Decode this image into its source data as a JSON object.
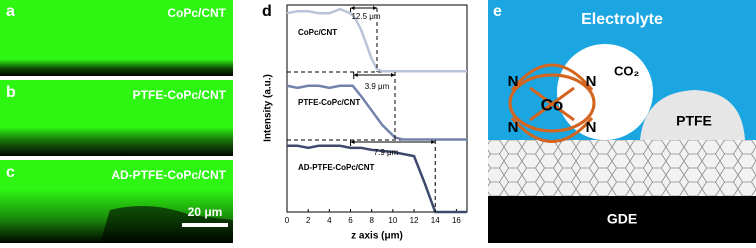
{
  "panels": {
    "a": {
      "letter": "a",
      "label": "CoPc/CNT"
    },
    "b": {
      "letter": "b",
      "label": "PTFE-CoPc/CNT"
    },
    "c": {
      "letter": "c",
      "label": "AD-PTFE-CoPc/CNT",
      "scale_bar": "20 μm"
    }
  },
  "chart_data": {
    "type": "line",
    "letter": "d",
    "x_label": "z axis (μm)",
    "y_label": "Intensity (a.u.)",
    "xlim": [
      0,
      17
    ],
    "xticks": [
      0,
      2,
      4,
      6,
      8,
      10,
      12,
      14,
      16
    ],
    "ylim": [
      0,
      100
    ],
    "series": [
      {
        "name": "CoPc/CNT",
        "color": "#b9c4da",
        "x": [
          0,
          1,
          2,
          3,
          4,
          5,
          6,
          6.5,
          7,
          7.5,
          8,
          8.5,
          9,
          17
        ],
        "values": [
          96,
          97,
          97,
          96,
          96,
          98,
          96,
          93,
          88,
          81,
          74,
          69,
          68,
          68
        ]
      },
      {
        "name": "PTFE-CoPc/CNT",
        "color": "#7282ab",
        "x": [
          0,
          1,
          2,
          3,
          4,
          5,
          6.2,
          7,
          8,
          9,
          10.2,
          11,
          17
        ],
        "values": [
          61,
          60,
          61,
          61,
          60,
          61,
          61,
          56,
          49,
          42,
          36,
          35,
          35
        ]
      },
      {
        "name": "AD-PTFE-CoPc/CNT",
        "color": "#3e4a6d",
        "x": [
          0,
          1,
          2,
          3,
          4,
          5,
          6,
          7,
          8,
          10,
          12,
          13,
          14,
          17
        ],
        "values": [
          32,
          32,
          31,
          32,
          32,
          32,
          31,
          31,
          30,
          29,
          27,
          14,
          0,
          0
        ]
      }
    ],
    "annotations": [
      "12.5 μm",
      "3.9 μm",
      "7.9 μm"
    ]
  },
  "diagram": {
    "letter": "e",
    "electrolyte": "Electrolyte",
    "co2": "CO₂",
    "metal": "Co",
    "nitrogen": [
      "N",
      "N",
      "N",
      "N"
    ],
    "ptfe": "PTFE",
    "gde": "GDE"
  }
}
